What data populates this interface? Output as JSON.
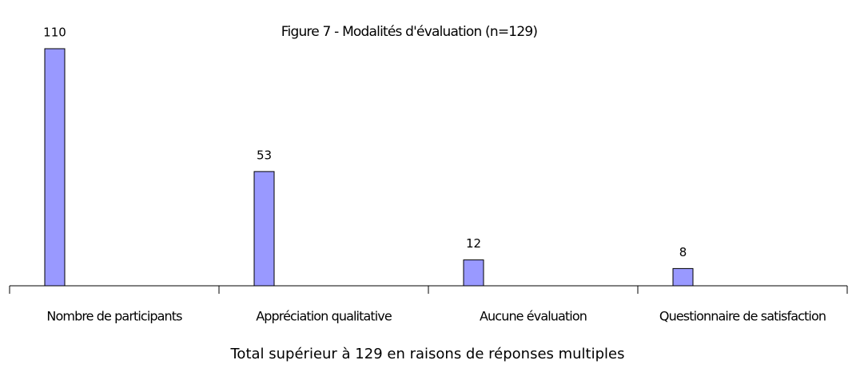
{
  "chart_data": {
    "type": "bar",
    "title": "Figure 7 - Modalités d'évaluation (n=129)",
    "categories": [
      "Nombre de participants",
      "Appréciation qualitative",
      "Aucune évaluation",
      "Questionnaire de satisfaction"
    ],
    "values": [
      110,
      53,
      12,
      8
    ],
    "color": "#9999ff",
    "caption": "Total supérieur à 129 en raisons de réponses multiples"
  }
}
